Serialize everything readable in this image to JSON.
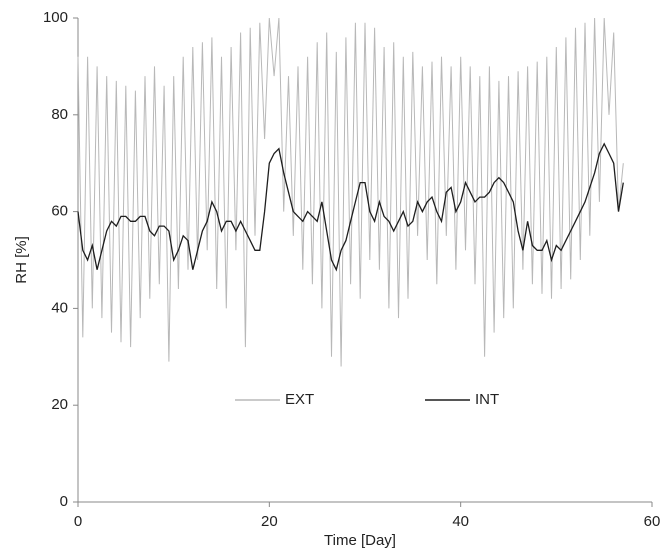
{
  "chart_data": {
    "type": "line",
    "xlabel": "Time [Day]",
    "ylabel": "RH [%]",
    "xlim": [
      0,
      60
    ],
    "xticks": [
      0,
      20,
      40,
      60
    ],
    "ylim": [
      0,
      100
    ],
    "yticks": [
      0,
      20,
      40,
      60,
      80,
      100
    ],
    "grid": false,
    "legend": "center",
    "x": [
      0,
      0.5,
      1,
      1.5,
      2,
      2.5,
      3,
      3.5,
      4,
      4.5,
      5,
      5.5,
      6,
      6.5,
      7,
      7.5,
      8,
      8.5,
      9,
      9.5,
      10,
      10.5,
      11,
      11.5,
      12,
      12.5,
      13,
      13.5,
      14,
      14.5,
      15,
      15.5,
      16,
      16.5,
      17,
      17.5,
      18,
      18.5,
      19,
      19.5,
      20,
      20.5,
      21,
      21.5,
      22,
      22.5,
      23,
      23.5,
      24,
      24.5,
      25,
      25.5,
      26,
      26.5,
      27,
      27.5,
      28,
      28.5,
      29,
      29.5,
      30,
      30.5,
      31,
      31.5,
      32,
      32.5,
      33,
      33.5,
      34,
      34.5,
      35,
      35.5,
      36,
      36.5,
      37,
      37.5,
      38,
      38.5,
      39,
      39.5,
      40,
      40.5,
      41,
      41.5,
      42,
      42.5,
      43,
      43.5,
      44,
      44.5,
      45,
      45.5,
      46,
      46.5,
      47,
      47.5,
      48,
      48.5,
      49,
      49.5,
      50,
      50.5,
      51,
      51.5,
      52,
      52.5,
      53,
      53.5,
      54,
      54.5,
      55,
      55.5,
      56,
      56.5,
      57
    ],
    "series": [
      {
        "name": "EXT",
        "color": "#b8b8b8",
        "values": [
          92,
          34,
          92,
          40,
          90,
          38,
          88,
          35,
          87,
          33,
          86,
          32,
          85,
          38,
          88,
          42,
          90,
          45,
          86,
          29,
          88,
          44,
          92,
          48,
          94,
          50,
          95,
          52,
          96,
          44,
          92,
          40,
          94,
          52,
          97,
          32,
          98,
          55,
          99,
          75,
          100,
          88,
          100,
          60,
          88,
          55,
          90,
          48,
          92,
          45,
          95,
          40,
          97,
          30,
          93,
          28,
          96,
          45,
          99,
          42,
          99,
          50,
          98,
          48,
          94,
          40,
          95,
          38,
          92,
          42,
          93,
          55,
          90,
          50,
          91,
          45,
          92,
          55,
          90,
          48,
          92,
          52,
          90,
          45,
          88,
          30,
          90,
          35,
          87,
          38,
          88,
          40,
          89,
          48,
          90,
          45,
          91,
          43,
          92,
          42,
          94,
          44,
          96,
          46,
          98,
          50,
          99,
          55,
          100,
          62,
          100,
          80,
          97,
          60,
          70
        ]
      },
      {
        "name": "INT",
        "color": "#1e1e1e",
        "values": [
          60,
          52,
          50,
          53,
          48,
          52,
          56,
          58,
          57,
          59,
          59,
          58,
          58,
          59,
          59,
          56,
          55,
          57,
          57,
          56,
          50,
          52,
          55,
          54,
          48,
          52,
          56,
          58,
          62,
          60,
          56,
          58,
          58,
          56,
          58,
          56,
          54,
          52,
          52,
          60,
          70,
          72,
          73,
          68,
          64,
          60,
          59,
          58,
          60,
          59,
          58,
          62,
          56,
          50,
          48,
          52,
          54,
          58,
          62,
          66,
          66,
          60,
          58,
          62,
          59,
          58,
          56,
          58,
          60,
          57,
          58,
          62,
          60,
          62,
          63,
          60,
          58,
          64,
          65,
          60,
          62,
          66,
          64,
          62,
          63,
          63,
          64,
          66,
          67,
          66,
          64,
          62,
          56,
          52,
          58,
          53,
          52,
          52,
          54,
          50,
          53,
          52,
          54,
          56,
          58,
          60,
          62,
          65,
          68,
          72,
          74,
          72,
          70,
          60,
          66
        ]
      }
    ]
  }
}
